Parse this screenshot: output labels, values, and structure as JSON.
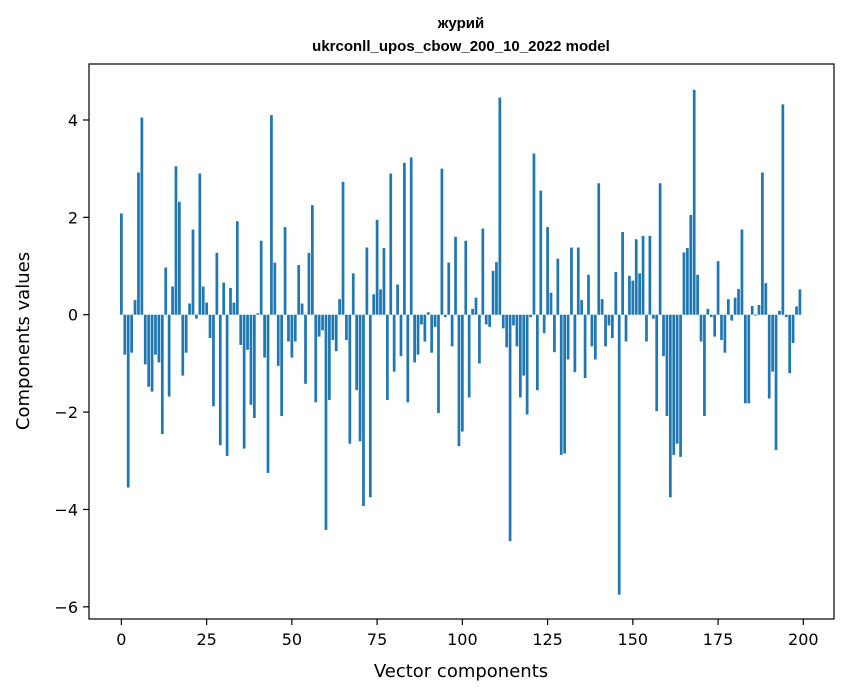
{
  "chart_data": {
    "type": "bar",
    "title": "журий",
    "subtitle": "ukrconll_upos_cbow_200_10_2022 model",
    "xlabel": "Vector components",
    "ylabel": "Components values",
    "xlim": [
      -9.5,
      209
    ],
    "ylim": [
      -6.25,
      5.15
    ],
    "x_ticks": [
      0,
      25,
      50,
      75,
      100,
      125,
      150,
      175,
      200
    ],
    "y_ticks": [
      -6,
      -4,
      -2,
      0,
      2,
      4
    ],
    "y_tick_labels": [
      "−6",
      "−4",
      "−2",
      "0",
      "2",
      "4"
    ],
    "bar_color": "#1f77b4",
    "grid": false,
    "values": [
      2.08,
      -0.82,
      -3.55,
      -0.78,
      0.3,
      2.92,
      4.05,
      -1.02,
      -1.48,
      -1.58,
      -0.82,
      -0.98,
      -2.45,
      0.97,
      -1.68,
      0.58,
      3.05,
      2.32,
      -1.25,
      -0.78,
      0.23,
      1.75,
      -0.08,
      2.9,
      0.58,
      0.25,
      -0.48,
      -1.88,
      1.27,
      -2.68,
      0.66,
      -2.9,
      0.55,
      0.25,
      1.92,
      -0.62,
      -2.75,
      -0.72,
      -1.85,
      -2.12,
      0.03,
      1.52,
      -0.88,
      -3.25,
      4.1,
      1.07,
      -1.05,
      -2.08,
      1.8,
      -0.55,
      -0.88,
      -0.55,
      1.02,
      0.23,
      -1.42,
      1.27,
      2.25,
      -1.8,
      -0.45,
      -0.32,
      -4.42,
      -1.75,
      -0.52,
      -0.75,
      0.32,
      2.73,
      -0.52,
      -2.65,
      0.85,
      -1.55,
      -2.6,
      -3.93,
      1.38,
      -3.75,
      0.42,
      1.95,
      0.52,
      1.37,
      -1.75,
      2.9,
      -1.17,
      0.62,
      -0.85,
      3.12,
      -1.8,
      3.23,
      -0.98,
      -0.82,
      -0.2,
      -0.55,
      0.05,
      -0.78,
      -0.25,
      -2.02,
      3.0,
      -0.05,
      1.07,
      -0.65,
      1.6,
      -2.7,
      -2.4,
      1.52,
      -1.7,
      0.12,
      0.35,
      -1.0,
      1.77,
      -0.2,
      -0.25,
      0.9,
      1.08,
      4.46,
      -0.28,
      -0.67,
      -4.65,
      -0.22,
      -0.65,
      -1.7,
      -1.25,
      -2.05,
      -0.05,
      3.31,
      -1.55,
      2.55,
      -0.38,
      1.8,
      0.45,
      -0.77,
      1.15,
      -2.88,
      -2.85,
      -0.92,
      1.38,
      -1.18,
      1.38,
      0.3,
      -1.3,
      0.82,
      -0.65,
      -0.92,
      2.7,
      0.32,
      -0.65,
      -0.22,
      -0.48,
      0.88,
      -5.75,
      1.7,
      -0.55,
      0.8,
      0.7,
      1.55,
      0.85,
      1.62,
      -0.55,
      1.62,
      -0.08,
      -1.98,
      2.7,
      -0.85,
      -2.08,
      -3.75,
      -2.88,
      -2.65,
      -2.92,
      1.28,
      1.37,
      2.05,
      4.62,
      0.82,
      -0.55,
      -2.08,
      0.12,
      -0.05,
      -0.45,
      1.1,
      -0.52,
      -0.78,
      0.32,
      -0.12,
      0.35,
      0.53,
      1.75,
      -1.82,
      -1.82,
      0.18,
      -0.02,
      0.2,
      2.92,
      0.65,
      -1.72,
      -1.17,
      -2.78,
      0.08,
      4.32,
      -0.05,
      -1.2,
      -0.58,
      0.17,
      0.52
    ]
  }
}
